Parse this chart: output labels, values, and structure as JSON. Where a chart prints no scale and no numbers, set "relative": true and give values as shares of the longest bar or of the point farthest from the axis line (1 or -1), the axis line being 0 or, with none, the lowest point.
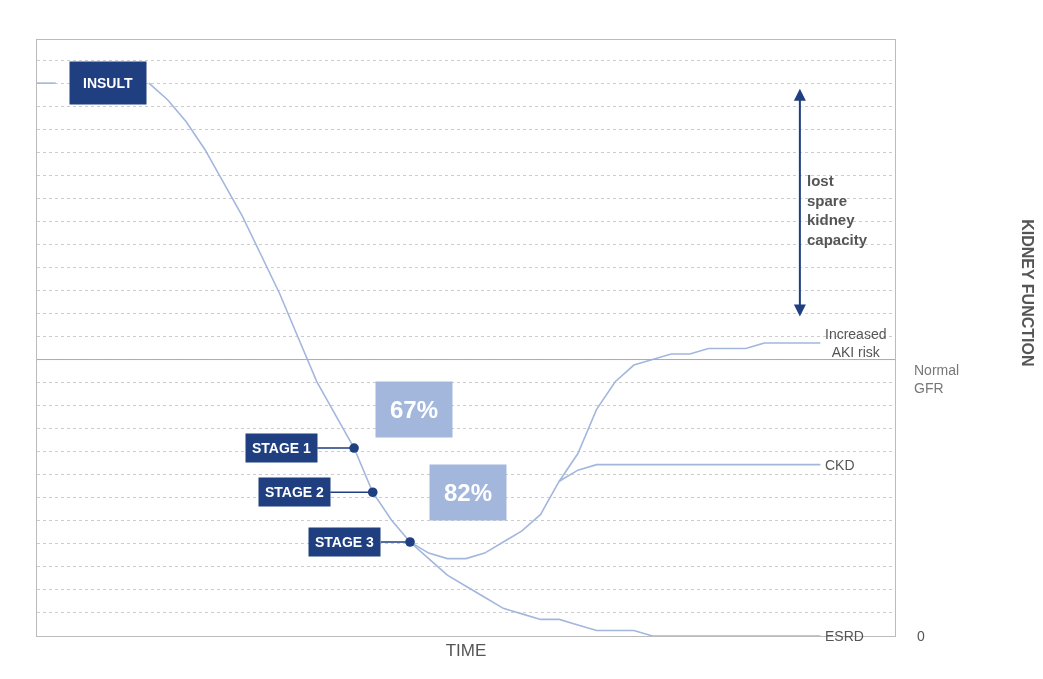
{
  "chart_data": {
    "type": "line",
    "relative": true,
    "xlabel": "TIME",
    "grid": "y",
    "line_style": "solid",
    "marker": "none",
    "categories": [
      null,
      null,
      null,
      null,
      null,
      null,
      null,
      null,
      null,
      null,
      null,
      null,
      null,
      null,
      null,
      null,
      null,
      null,
      null,
      null,
      null,
      null,
      null,
      null,
      null,
      null,
      null,
      null,
      null,
      null,
      null,
      null,
      null,
      null,
      null,
      null,
      null,
      null,
      null,
      null,
      null,
      null,
      null
    ],
    "series": [
      {
        "name": "ESRD",
        "color": "#a3b7dd",
        "values": [
          1,
          1,
          null,
          null,
          null,
          null,
          1,
          0.97,
          0.93,
          0.88,
          0.82,
          0.76,
          0.69,
          0.62,
          0.54,
          0.46,
          0.4,
          0.34,
          0.26,
          0.21,
          0.17,
          0.14,
          0.11,
          0.09,
          0.07,
          0.05,
          0.04,
          0.03,
          0.03,
          0.02,
          0.01,
          0.01,
          0.01,
          0,
          0,
          0,
          0,
          0,
          0,
          0,
          0,
          0,
          0
        ]
      },
      {
        "name": "CKD",
        "color": "#a3b7dd",
        "values": [
          null,
          null,
          null,
          null,
          null,
          null,
          null,
          null,
          null,
          null,
          null,
          null,
          null,
          null,
          null,
          null,
          null,
          null,
          null,
          null,
          0.17,
          0.15,
          0.14,
          0.14,
          0.15,
          0.17,
          0.19,
          0.22,
          0.28,
          0.3,
          0.31,
          0.31,
          0.31,
          0.31,
          0.31,
          0.31,
          0.31,
          0.31,
          0.31,
          0.31,
          0.31,
          0.31,
          0.31
        ]
      },
      {
        "name": "Increased AKI risk",
        "color": "#a3b7dd",
        "values": [
          null,
          null,
          null,
          null,
          null,
          null,
          null,
          null,
          null,
          null,
          null,
          null,
          null,
          null,
          null,
          null,
          null,
          null,
          null,
          null,
          null,
          null,
          null,
          null,
          null,
          null,
          null,
          null,
          0.28,
          0.33,
          0.41,
          0.46,
          0.49,
          0.5,
          0.51,
          0.51,
          0.52,
          0.52,
          0.52,
          0.53,
          0.53,
          0.53,
          0.53
        ]
      }
    ],
    "ref_lines": [
      {
        "axis": "y",
        "value": 0.5,
        "label": "Normal GFR",
        "color": "#aaaaaa"
      }
    ],
    "annotations": [
      "INSULT",
      "STAGE 1",
      "STAGE 2",
      "STAGE 3",
      "67%",
      "82%",
      "lost spare kidney capacity",
      "0",
      "KIDNEY FUNCTION"
    ]
  }
}
